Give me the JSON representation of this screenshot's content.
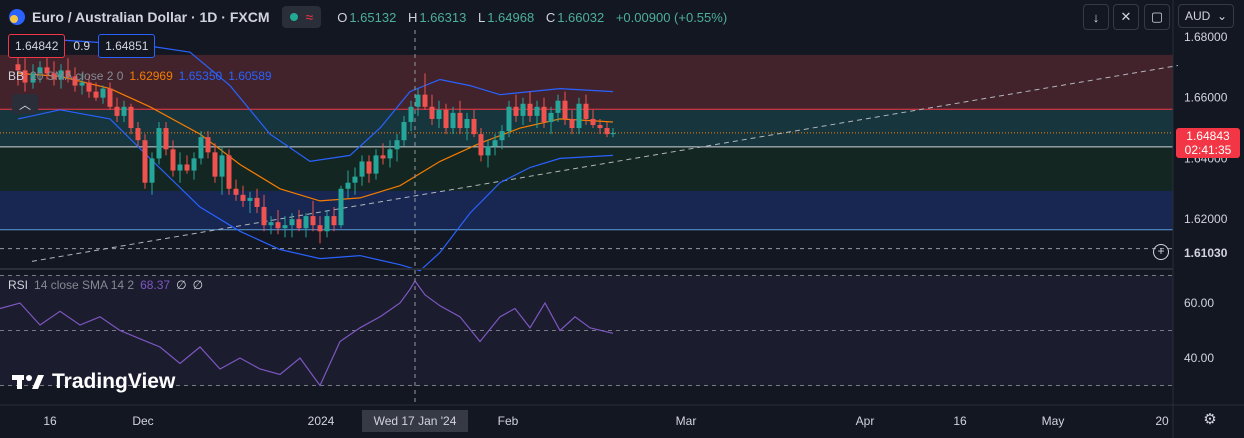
{
  "header": {
    "title": "Euro / Australian Dollar · 1D · FXCM",
    "ohlc": [
      {
        "k": "O",
        "v": "1.65132"
      },
      {
        "k": "H",
        "v": "1.66313"
      },
      {
        "k": "L",
        "v": "1.64968"
      },
      {
        "k": "C",
        "v": "1.66032"
      },
      {
        "k": "",
        "v": "+0.00900 (+0.55%)"
      }
    ],
    "sell_price": "1.64842",
    "spread": "0.9",
    "buy_price": "1.64851"
  },
  "indicators": {
    "bb": {
      "label": "BB",
      "params": "20 SMA close 2 0",
      "v1": "1.62969",
      "v2": "1.65350",
      "v3": "1.60589"
    },
    "rsi": {
      "label": "RSI",
      "params": "14 close SMA 14 2",
      "value": "68.37",
      "v2": "∅",
      "v3": "∅"
    }
  },
  "toolbar": {
    "currency": "AUD"
  },
  "price_tag": {
    "price": "1.64843",
    "countdown": "02:41:35"
  },
  "crosshair_price": "1.61030",
  "crosshair_date": "Wed 17 Jan '24",
  "brand": "TradingView",
  "colors": {
    "up": "#26a69a",
    "down": "#ef5350",
    "bb_mid": "#f57c00",
    "bb_band": "#2962ff",
    "rsi": "#7e57c2",
    "bg": "#131722"
  },
  "chart_data": {
    "type": "candlestick",
    "yaxis_ticks": [
      "1.68000",
      "1.66000",
      "1.64000",
      "1.62000"
    ],
    "rsi_ticks": [
      "60.00",
      "40.00"
    ],
    "x_tick_labels": [
      "16",
      "Dec",
      "2024",
      "Feb",
      "Mar",
      "Apr",
      "16",
      "May",
      "20"
    ],
    "ylim": [
      1.6039,
      1.6823
    ],
    "zones": [
      {
        "top": 1.6741,
        "bottom": 1.6562,
        "color": "#ef5350"
      },
      {
        "top": 1.6562,
        "bottom": 1.6438,
        "color": "#26a69a"
      },
      {
        "top": 1.6438,
        "bottom": 1.6293,
        "color": "#1b5e20"
      },
      {
        "top": 1.6293,
        "bottom": 1.6165,
        "color": "#2962ff"
      }
    ],
    "hlines": [
      {
        "value": 1.6562,
        "color": "#f23645"
      },
      {
        "value": 1.6438,
        "color": "#d1d4dc"
      },
      {
        "value": 1.6165,
        "color": "#5b9bd5"
      }
    ],
    "trendline": {
      "x": [
        32,
        1178
      ],
      "y": [
        1.6061,
        1.6706
      ]
    },
    "candles": [
      {
        "x": 18,
        "o": 1.671,
        "h": 1.676,
        "l": 1.664,
        "c": 1.669
      },
      {
        "x": 25,
        "o": 1.669,
        "h": 1.673,
        "l": 1.662,
        "c": 1.665
      },
      {
        "x": 33,
        "o": 1.665,
        "h": 1.671,
        "l": 1.663,
        "c": 1.668
      },
      {
        "x": 40,
        "o": 1.668,
        "h": 1.672,
        "l": 1.665,
        "c": 1.67
      },
      {
        "x": 47,
        "o": 1.67,
        "h": 1.674,
        "l": 1.666,
        "c": 1.668
      },
      {
        "x": 54,
        "o": 1.668,
        "h": 1.672,
        "l": 1.664,
        "c": 1.666
      },
      {
        "x": 61,
        "o": 1.666,
        "h": 1.671,
        "l": 1.663,
        "c": 1.669
      },
      {
        "x": 68,
        "o": 1.669,
        "h": 1.673,
        "l": 1.665,
        "c": 1.667
      },
      {
        "x": 75,
        "o": 1.667,
        "h": 1.67,
        "l": 1.662,
        "c": 1.664
      },
      {
        "x": 82,
        "o": 1.664,
        "h": 1.668,
        "l": 1.661,
        "c": 1.665
      },
      {
        "x": 89,
        "o": 1.665,
        "h": 1.667,
        "l": 1.66,
        "c": 1.662
      },
      {
        "x": 96,
        "o": 1.662,
        "h": 1.665,
        "l": 1.659,
        "c": 1.66
      },
      {
        "x": 103,
        "o": 1.66,
        "h": 1.664,
        "l": 1.658,
        "c": 1.663
      },
      {
        "x": 110,
        "o": 1.663,
        "h": 1.665,
        "l": 1.656,
        "c": 1.657
      },
      {
        "x": 117,
        "o": 1.657,
        "h": 1.66,
        "l": 1.652,
        "c": 1.654
      },
      {
        "x": 124,
        "o": 1.654,
        "h": 1.659,
        "l": 1.652,
        "c": 1.657
      },
      {
        "x": 131,
        "o": 1.657,
        "h": 1.658,
        "l": 1.648,
        "c": 1.65
      },
      {
        "x": 138,
        "o": 1.65,
        "h": 1.652,
        "l": 1.644,
        "c": 1.646
      },
      {
        "x": 145,
        "o": 1.646,
        "h": 1.648,
        "l": 1.63,
        "c": 1.632
      },
      {
        "x": 152,
        "o": 1.632,
        "h": 1.642,
        "l": 1.628,
        "c": 1.64
      },
      {
        "x": 159,
        "o": 1.64,
        "h": 1.652,
        "l": 1.638,
        "c": 1.65
      },
      {
        "x": 166,
        "o": 1.65,
        "h": 1.652,
        "l": 1.641,
        "c": 1.643
      },
      {
        "x": 173,
        "o": 1.643,
        "h": 1.646,
        "l": 1.634,
        "c": 1.636
      },
      {
        "x": 180,
        "o": 1.636,
        "h": 1.642,
        "l": 1.632,
        "c": 1.638
      },
      {
        "x": 187,
        "o": 1.638,
        "h": 1.641,
        "l": 1.635,
        "c": 1.636
      },
      {
        "x": 194,
        "o": 1.636,
        "h": 1.642,
        "l": 1.633,
        "c": 1.64
      },
      {
        "x": 201,
        "o": 1.64,
        "h": 1.649,
        "l": 1.638,
        "c": 1.647
      },
      {
        "x": 208,
        "o": 1.647,
        "h": 1.649,
        "l": 1.64,
        "c": 1.642
      },
      {
        "x": 215,
        "o": 1.642,
        "h": 1.645,
        "l": 1.632,
        "c": 1.634
      },
      {
        "x": 222,
        "o": 1.634,
        "h": 1.644,
        "l": 1.628,
        "c": 1.641
      },
      {
        "x": 229,
        "o": 1.641,
        "h": 1.643,
        "l": 1.628,
        "c": 1.63
      },
      {
        "x": 236,
        "o": 1.63,
        "h": 1.633,
        "l": 1.626,
        "c": 1.628
      },
      {
        "x": 243,
        "o": 1.628,
        "h": 1.631,
        "l": 1.624,
        "c": 1.626
      },
      {
        "x": 250,
        "o": 1.626,
        "h": 1.629,
        "l": 1.622,
        "c": 1.627
      },
      {
        "x": 257,
        "o": 1.627,
        "h": 1.63,
        "l": 1.622,
        "c": 1.624
      },
      {
        "x": 264,
        "o": 1.624,
        "h": 1.628,
        "l": 1.616,
        "c": 1.618
      },
      {
        "x": 271,
        "o": 1.618,
        "h": 1.621,
        "l": 1.615,
        "c": 1.619
      },
      {
        "x": 278,
        "o": 1.619,
        "h": 1.623,
        "l": 1.615,
        "c": 1.617
      },
      {
        "x": 285,
        "o": 1.617,
        "h": 1.621,
        "l": 1.614,
        "c": 1.618
      },
      {
        "x": 292,
        "o": 1.618,
        "h": 1.622,
        "l": 1.614,
        "c": 1.62
      },
      {
        "x": 299,
        "o": 1.62,
        "h": 1.623,
        "l": 1.616,
        "c": 1.617
      },
      {
        "x": 306,
        "o": 1.617,
        "h": 1.622,
        "l": 1.614,
        "c": 1.621
      },
      {
        "x": 313,
        "o": 1.621,
        "h": 1.626,
        "l": 1.616,
        "c": 1.618
      },
      {
        "x": 320,
        "o": 1.618,
        "h": 1.621,
        "l": 1.612,
        "c": 1.616
      },
      {
        "x": 327,
        "o": 1.616,
        "h": 1.623,
        "l": 1.614,
        "c": 1.621
      },
      {
        "x": 334,
        "o": 1.621,
        "h": 1.624,
        "l": 1.616,
        "c": 1.618
      },
      {
        "x": 341,
        "o": 1.618,
        "h": 1.631,
        "l": 1.617,
        "c": 1.63
      },
      {
        "x": 348,
        "o": 1.63,
        "h": 1.636,
        "l": 1.627,
        "c": 1.632
      },
      {
        "x": 355,
        "o": 1.632,
        "h": 1.637,
        "l": 1.628,
        "c": 1.634
      },
      {
        "x": 362,
        "o": 1.634,
        "h": 1.641,
        "l": 1.631,
        "c": 1.639
      },
      {
        "x": 369,
        "o": 1.639,
        "h": 1.641,
        "l": 1.632,
        "c": 1.635
      },
      {
        "x": 376,
        "o": 1.635,
        "h": 1.643,
        "l": 1.633,
        "c": 1.641
      },
      {
        "x": 383,
        "o": 1.641,
        "h": 1.645,
        "l": 1.638,
        "c": 1.64
      },
      {
        "x": 390,
        "o": 1.64,
        "h": 1.646,
        "l": 1.637,
        "c": 1.643
      },
      {
        "x": 397,
        "o": 1.643,
        "h": 1.648,
        "l": 1.639,
        "c": 1.646
      },
      {
        "x": 404,
        "o": 1.646,
        "h": 1.654,
        "l": 1.644,
        "c": 1.652
      },
      {
        "x": 411,
        "o": 1.652,
        "h": 1.659,
        "l": 1.649,
        "c": 1.657
      },
      {
        "x": 418,
        "o": 1.657,
        "h": 1.663,
        "l": 1.654,
        "c": 1.661
      },
      {
        "x": 425,
        "o": 1.661,
        "h": 1.668,
        "l": 1.656,
        "c": 1.657
      },
      {
        "x": 432,
        "o": 1.657,
        "h": 1.661,
        "l": 1.651,
        "c": 1.653
      },
      {
        "x": 439,
        "o": 1.653,
        "h": 1.659,
        "l": 1.65,
        "c": 1.656
      },
      {
        "x": 446,
        "o": 1.656,
        "h": 1.658,
        "l": 1.648,
        "c": 1.65
      },
      {
        "x": 453,
        "o": 1.65,
        "h": 1.657,
        "l": 1.648,
        "c": 1.655
      },
      {
        "x": 460,
        "o": 1.655,
        "h": 1.659,
        "l": 1.648,
        "c": 1.65
      },
      {
        "x": 467,
        "o": 1.65,
        "h": 1.655,
        "l": 1.646,
        "c": 1.653
      },
      {
        "x": 474,
        "o": 1.653,
        "h": 1.656,
        "l": 1.647,
        "c": 1.648
      },
      {
        "x": 481,
        "o": 1.648,
        "h": 1.65,
        "l": 1.639,
        "c": 1.641
      },
      {
        "x": 488,
        "o": 1.641,
        "h": 1.646,
        "l": 1.637,
        "c": 1.644
      },
      {
        "x": 495,
        "o": 1.644,
        "h": 1.648,
        "l": 1.641,
        "c": 1.646
      },
      {
        "x": 502,
        "o": 1.646,
        "h": 1.651,
        "l": 1.643,
        "c": 1.649
      },
      {
        "x": 509,
        "o": 1.649,
        "h": 1.659,
        "l": 1.647,
        "c": 1.657
      },
      {
        "x": 516,
        "o": 1.657,
        "h": 1.661,
        "l": 1.652,
        "c": 1.654
      },
      {
        "x": 523,
        "o": 1.654,
        "h": 1.66,
        "l": 1.651,
        "c": 1.658
      },
      {
        "x": 530,
        "o": 1.658,
        "h": 1.662,
        "l": 1.652,
        "c": 1.654
      },
      {
        "x": 537,
        "o": 1.654,
        "h": 1.659,
        "l": 1.65,
        "c": 1.657
      },
      {
        "x": 544,
        "o": 1.657,
        "h": 1.66,
        "l": 1.65,
        "c": 1.652
      },
      {
        "x": 551,
        "o": 1.652,
        "h": 1.657,
        "l": 1.648,
        "c": 1.655
      },
      {
        "x": 558,
        "o": 1.655,
        "h": 1.661,
        "l": 1.652,
        "c": 1.659
      },
      {
        "x": 565,
        "o": 1.659,
        "h": 1.662,
        "l": 1.651,
        "c": 1.653
      },
      {
        "x": 572,
        "o": 1.653,
        "h": 1.656,
        "l": 1.648,
        "c": 1.65
      },
      {
        "x": 579,
        "o": 1.65,
        "h": 1.66,
        "l": 1.648,
        "c": 1.658
      },
      {
        "x": 586,
        "o": 1.658,
        "h": 1.661,
        "l": 1.651,
        "c": 1.653
      },
      {
        "x": 593,
        "o": 1.653,
        "h": 1.656,
        "l": 1.65,
        "c": 1.651
      },
      {
        "x": 600,
        "o": 1.651,
        "h": 1.653,
        "l": 1.648,
        "c": 1.65
      },
      {
        "x": 607,
        "o": 1.65,
        "h": 1.652,
        "l": 1.647,
        "c": 1.648
      },
      {
        "x": 613,
        "o": 1.648,
        "h": 1.65,
        "l": 1.647,
        "c": 1.6484
      }
    ],
    "bb_mid": {
      "x": [
        18,
        60,
        110,
        150,
        200,
        240,
        280,
        320,
        360,
        400,
        440,
        480,
        520,
        560,
        613
      ],
      "y": [
        1.668,
        1.667,
        1.663,
        1.657,
        1.648,
        1.638,
        1.63,
        1.626,
        1.627,
        1.631,
        1.639,
        1.645,
        1.65,
        1.653,
        1.652
      ]
    },
    "bb_upper": {
      "x": [
        18,
        60,
        110,
        150,
        190,
        230,
        270,
        310,
        350,
        380,
        410,
        440,
        470,
        500,
        530,
        560,
        613
      ],
      "y": [
        1.678,
        1.679,
        1.678,
        1.677,
        1.675,
        1.664,
        1.648,
        1.639,
        1.641,
        1.65,
        1.662,
        1.666,
        1.664,
        1.661,
        1.662,
        1.663,
        1.662
      ]
    },
    "bb_lower": {
      "x": [
        18,
        60,
        110,
        150,
        200,
        240,
        280,
        320,
        360,
        400,
        420,
        440,
        470,
        500,
        530,
        560,
        613
      ],
      "y": [
        1.653,
        1.656,
        1.653,
        1.64,
        1.624,
        1.616,
        1.61,
        1.607,
        1.608,
        1.605,
        1.603,
        1.609,
        1.622,
        1.632,
        1.637,
        1.64,
        1.641
      ]
    },
    "rsi": {
      "x": [
        0,
        20,
        40,
        60,
        80,
        100,
        120,
        140,
        160,
        180,
        200,
        220,
        240,
        260,
        280,
        300,
        320,
        340,
        360,
        380,
        400,
        410,
        415,
        425,
        440,
        460,
        480,
        500,
        515,
        530,
        545,
        560,
        575,
        590,
        613
      ],
      "y": [
        58,
        60,
        52,
        57,
        52,
        55,
        50,
        47,
        44,
        38,
        44,
        36,
        40,
        36,
        34,
        40,
        30,
        46,
        51,
        55,
        60,
        65,
        68,
        63,
        59,
        55,
        46,
        55,
        58,
        51,
        60,
        50,
        55,
        51,
        49
      ]
    },
    "rsi_ylim": [
      24,
      72
    ]
  }
}
